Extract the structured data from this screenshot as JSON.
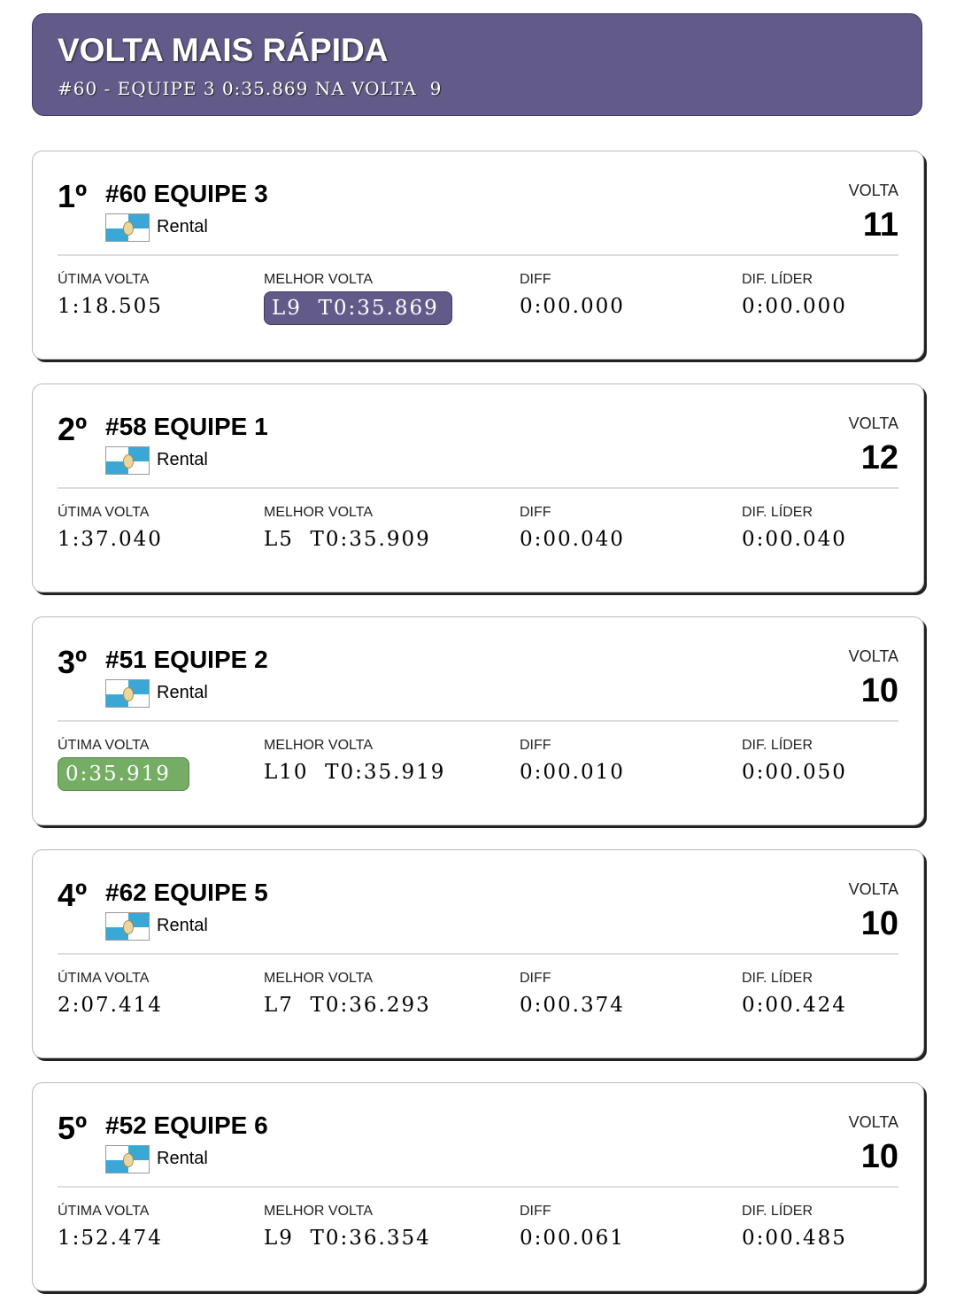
{
  "fastest_lap": {
    "title": "VOLTA MAIS RÁPIDA",
    "subtitle": "#60 - EQUIPE 3 0:35.869 NA VOLTA  9"
  },
  "labels": {
    "lap": "VOLTA",
    "last_lap": "ÚTIMA VOLTA",
    "best_lap": "MELHOR VOLTA",
    "diff": "DIFF",
    "diff_leader": "DIF. LÍDER"
  },
  "colors": {
    "banner": "#625b8a",
    "best_lap_highlight": "#625b8a",
    "personal_best_highlight": "#74ad63"
  },
  "flag_icon": "rio-de-janeiro-flag-icon",
  "standings": [
    {
      "position": "1º",
      "team": "#60 EQUIPE 3",
      "category": "Rental",
      "lap": "11",
      "last_lap": "1:18.505",
      "best_lap": "L9  T0:35.869",
      "diff": "0:00.000",
      "diff_leader": "0:00.000",
      "highlight": "best"
    },
    {
      "position": "2º",
      "team": "#58 EQUIPE 1",
      "category": "Rental",
      "lap": "12",
      "last_lap": "1:37.040",
      "best_lap": "L5  T0:35.909",
      "diff": "0:00.040",
      "diff_leader": "0:00.040",
      "highlight": ""
    },
    {
      "position": "3º",
      "team": "#51 EQUIPE 2",
      "category": "Rental",
      "lap": "10",
      "last_lap": "0:35.919",
      "best_lap": "L10  T0:35.919",
      "diff": "0:00.010",
      "diff_leader": "0:00.050",
      "highlight": "last"
    },
    {
      "position": "4º",
      "team": "#62 EQUIPE 5",
      "category": "Rental",
      "lap": "10",
      "last_lap": "2:07.414",
      "best_lap": "L7  T0:36.293",
      "diff": "0:00.374",
      "diff_leader": "0:00.424",
      "highlight": ""
    },
    {
      "position": "5º",
      "team": "#52 EQUIPE 6",
      "category": "Rental",
      "lap": "10",
      "last_lap": "1:52.474",
      "best_lap": "L9  T0:36.354",
      "diff": "0:00.061",
      "diff_leader": "0:00.485",
      "highlight": ""
    }
  ]
}
